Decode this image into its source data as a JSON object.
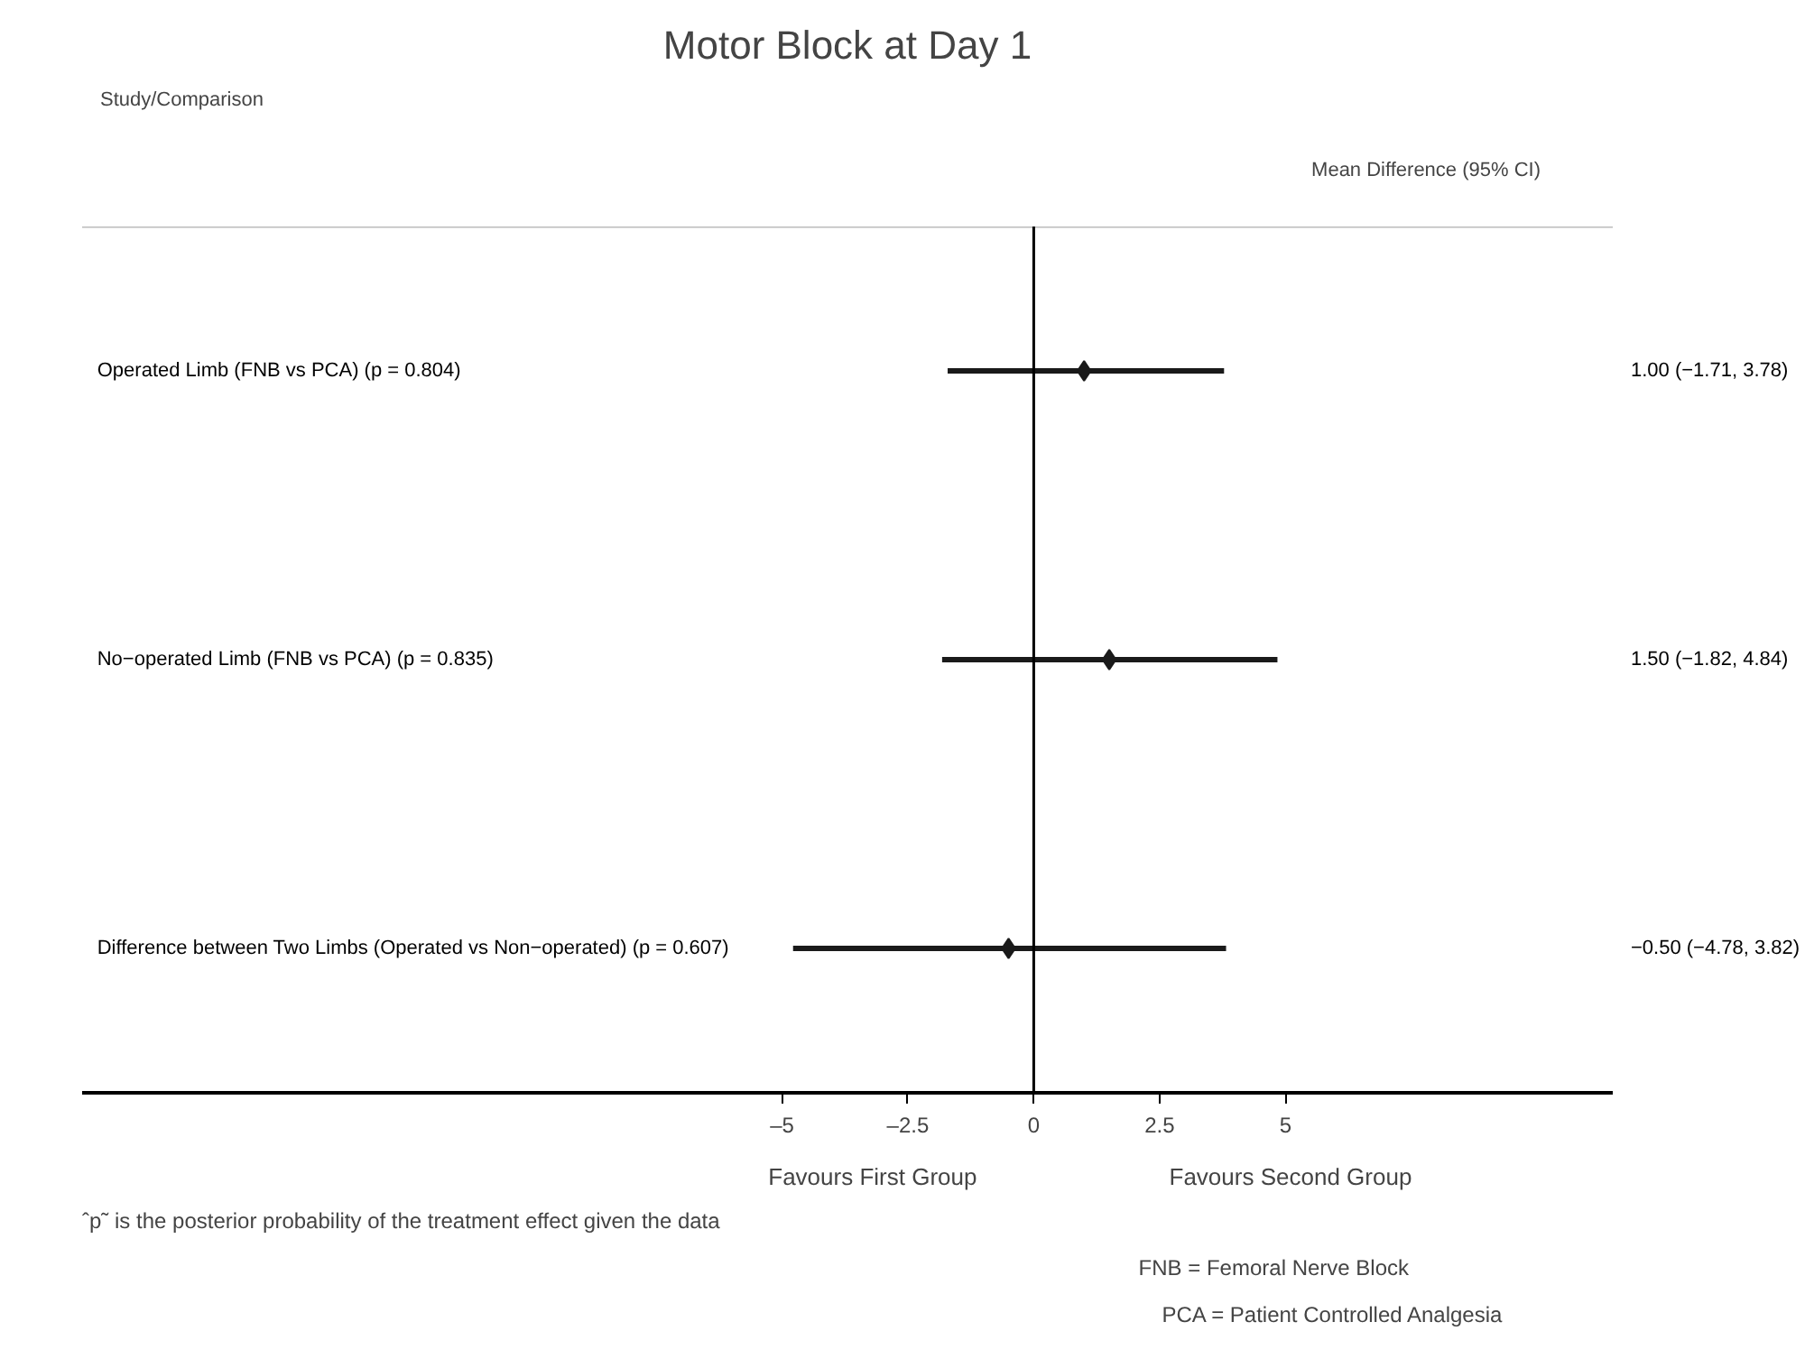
{
  "chart_data": {
    "type": "scatter",
    "orientation": "horizontal",
    "title": "Motor Block at Day 1",
    "categories": [
      "Operated Limb (FNB vs PCA) (p = 0.804)",
      "No−operated Limb (FNB vs PCA) (p = 0.835)",
      "Difference between Two Limbs (Operated vs Non−operated) (p = 0.607)"
    ],
    "values": [
      1.0,
      1.5,
      -0.5
    ],
    "errors": [
      [
        -1.71,
        3.78
      ],
      [
        -1.82,
        4.84
      ],
      [
        -4.78,
        3.82
      ]
    ],
    "y2_categories": [
      "1.00 (−1.71, 3.78)",
      "1.50 (−1.82, 4.84)",
      "−0.50 (−4.78, 3.82)"
    ],
    "color": "#1a1a1a",
    "marker": "diamond",
    "grid": false,
    "xlim": [
      -18.9,
      11.5
    ],
    "xticks": [
      {
        "value": -5,
        "label": "–5"
      },
      {
        "value": -2.5,
        "label": "–2.5"
      },
      0,
      2.5,
      5
    ],
    "ref_lines": [
      {
        "axis": "x",
        "value": 0,
        "label": null
      }
    ],
    "annotations": [
      "Study/Comparison",
      "Mean Difference (95% CI)",
      "Favours First Group",
      "Favours Second Group",
      "ˆp˜ is the posterior probability of the treatment effect given the data",
      "FNB = Femoral Nerve Block",
      "PCA = Patient Controlled Analgesia"
    ]
  }
}
